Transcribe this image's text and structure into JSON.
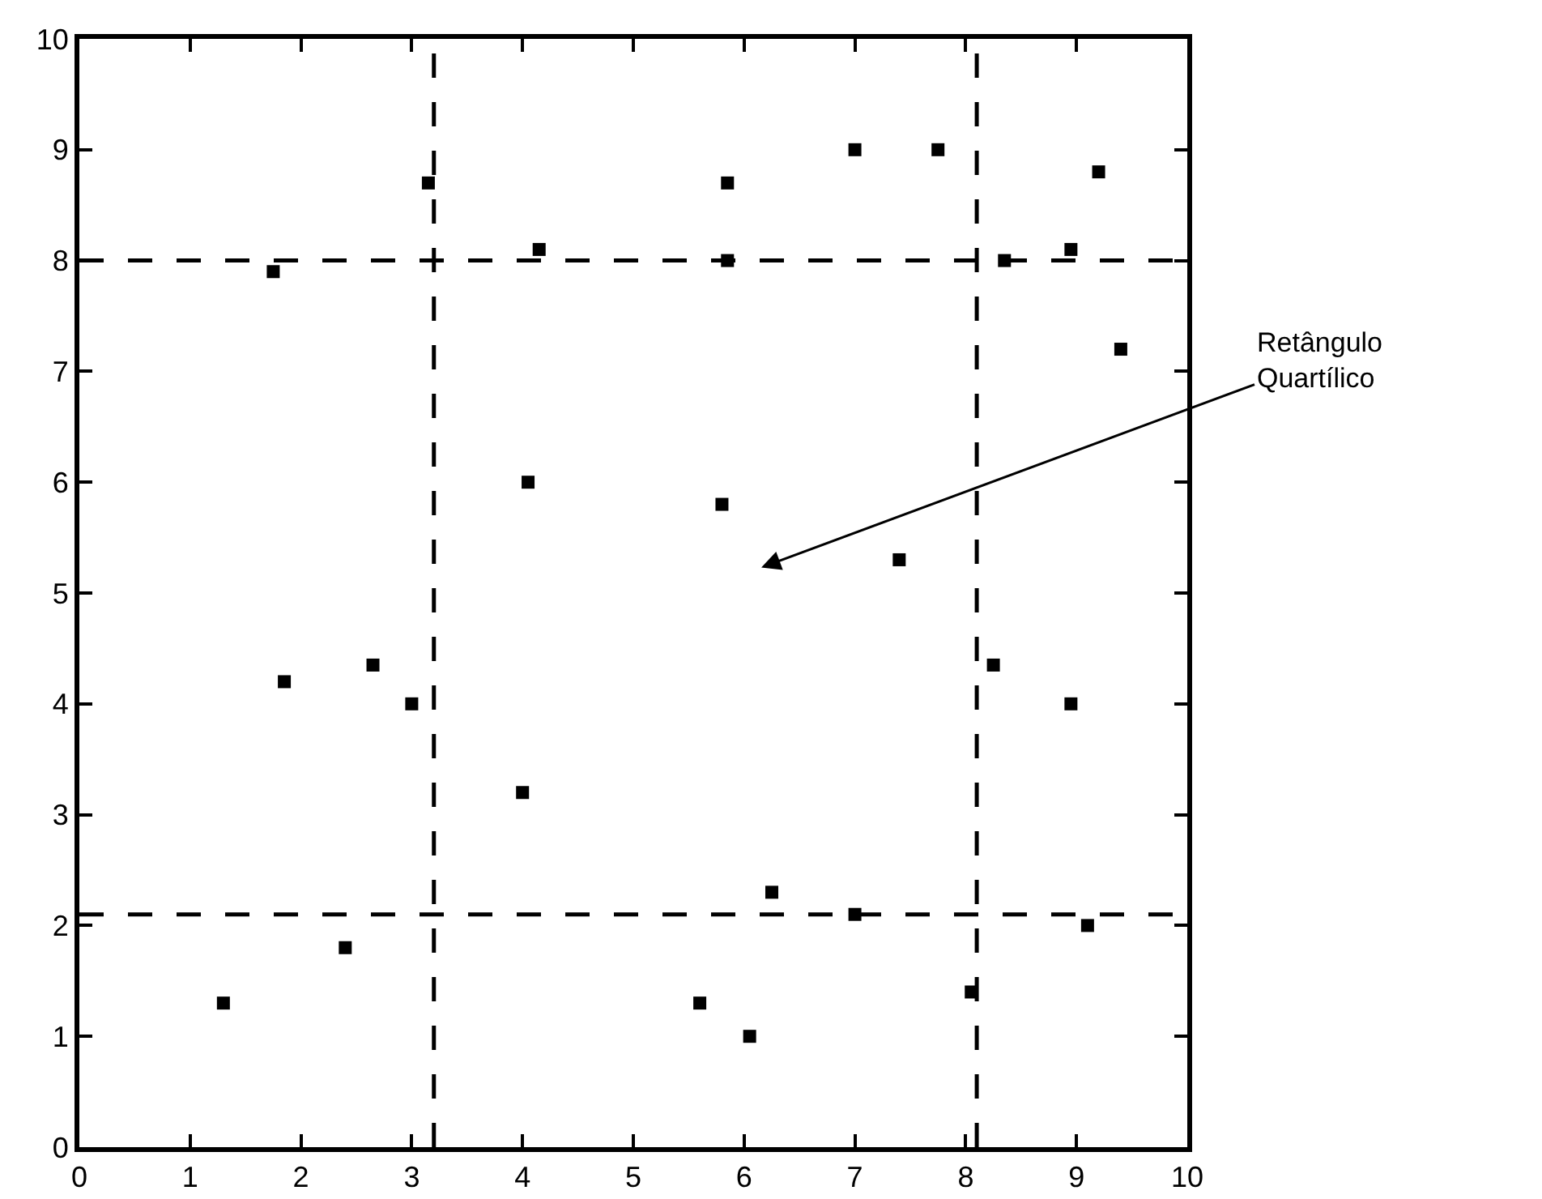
{
  "chart_data": {
    "type": "scatter",
    "marker": "square",
    "x": [
      1.3,
      1.85,
      2.65,
      3.0,
      2.4,
      4.0,
      8.25,
      8.95,
      6.25,
      7.0,
      9.1,
      5.6,
      6.05,
      8.05,
      3.15,
      4.15,
      1.75,
      4.05,
      5.85,
      7.0,
      7.75,
      9.2,
      5.85,
      8.35,
      8.95,
      9.4,
      5.8,
      7.4
    ],
    "series": [
      {
        "color": "#000000",
        "values": [
          1.3,
          4.2,
          4.35,
          4.0,
          1.8,
          3.2,
          4.35,
          4.0,
          2.3,
          2.1,
          2.0,
          1.3,
          1.0,
          1.4,
          8.7,
          8.1,
          7.9,
          6.0,
          8.7,
          9.0,
          9.0,
          8.8,
          8.0,
          8.0,
          8.1,
          7.2,
          5.8,
          5.3
        ]
      }
    ],
    "xlim": [
      0,
      10
    ],
    "ylim": [
      0,
      10
    ],
    "xticks": [
      0,
      1,
      2,
      3,
      4,
      5,
      6,
      7,
      8,
      9,
      10
    ],
    "yticks": [
      0,
      1,
      2,
      3,
      4,
      5,
      6,
      7,
      8,
      9,
      10
    ],
    "ref_lines": [
      {
        "axis": "x",
        "value": 3.2,
        "color": "#000000",
        "line_style": "dashed"
      },
      {
        "axis": "x",
        "value": 8.1,
        "color": "#000000",
        "line_style": "dashed"
      },
      {
        "axis": "y",
        "value": 2.1,
        "color": "#000000",
        "line_style": "dashed"
      },
      {
        "axis": "y",
        "value": 8.0,
        "color": "#000000",
        "line_style": "dashed"
      }
    ],
    "annotations": [
      "Retângulo\nQuartílico"
    ]
  }
}
